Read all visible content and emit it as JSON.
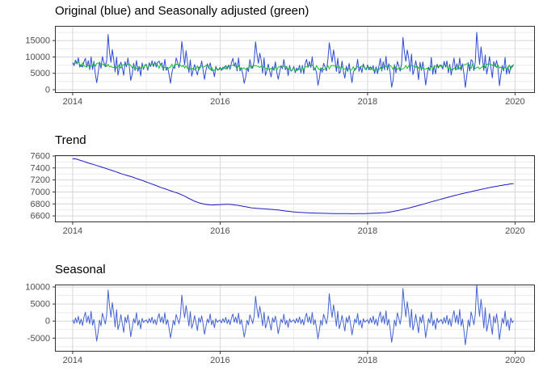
{
  "figure": {
    "background": "#ffffff",
    "grid_major_color": "#d6d6d6",
    "grid_minor_color": "#ececec",
    "panel_border_color": "#333333",
    "tick_color": "#333333",
    "axis_text_color": "#4d4d4d"
  },
  "chart_data": [
    {
      "type": "line",
      "title": "Original (blue) and Seasonally adjusted (green)",
      "x_ticks": [
        2014,
        2016,
        2018,
        2020
      ],
      "x_minor_ticks": [
        2015,
        2017,
        2019
      ],
      "xlim": [
        2013.76,
        2020.27
      ],
      "y_ticks": [
        0,
        5000,
        10000,
        15000
      ],
      "y_minor_ticks": [
        2500,
        7500,
        12500,
        17500
      ],
      "ylim": [
        -1000,
        19500
      ],
      "grid": true,
      "legend": "none (colors named in title)",
      "series": [
        {
          "name": "Original",
          "color": "#2e4bd4",
          "compose": "trend+seasonal+noise"
        },
        {
          "name": "Seasonally adjusted",
          "color": "#12bd2b",
          "compose": "trend+noise"
        }
      ]
    },
    {
      "type": "line",
      "title": "Trend",
      "x_ticks": [
        2014,
        2016,
        2018,
        2020
      ],
      "x_minor_ticks": [
        2015,
        2017,
        2019
      ],
      "xlim": [
        2013.76,
        2020.27
      ],
      "y_ticks": [
        6600,
        6800,
        7000,
        7200,
        7400,
        7600
      ],
      "y_minor_ticks": [
        6500,
        6700,
        6900,
        7100,
        7300,
        7500
      ],
      "ylim": [
        6494,
        7613
      ],
      "grid": true,
      "legend": "none",
      "series": [
        {
          "name": "Trend",
          "color": "#1a1ac9",
          "compose": "trend"
        }
      ]
    },
    {
      "type": "line",
      "title": "Seasonal",
      "x_ticks": [
        2014,
        2016,
        2018,
        2020
      ],
      "x_minor_ticks": [
        2015,
        2017,
        2019
      ],
      "xlim": [
        2013.76,
        2020.27
      ],
      "y_ticks": [
        -5000,
        0,
        5000,
        10000
      ],
      "y_minor_ticks": [
        -7500,
        -2500,
        2500,
        7500
      ],
      "ylim": [
        -8950,
        10714
      ],
      "grid": true,
      "legend": "none",
      "series": [
        {
          "name": "Seasonal",
          "color": "#4463d2",
          "compose": "seasonal"
        }
      ]
    }
  ],
  "decomposition": {
    "start_year": 2014,
    "points_per_year": 52,
    "n_points": 312,
    "trend_x": [
      2014.04,
      2014.12,
      2014.19,
      2014.27,
      2014.35,
      2014.42,
      2014.5,
      2014.58,
      2014.65,
      2014.73,
      2014.81,
      2014.88,
      2014.96,
      2015.04,
      2015.12,
      2015.19,
      2015.27,
      2015.35,
      2015.42,
      2015.5,
      2015.58,
      2015.65,
      2015.73,
      2015.81,
      2015.88,
      2015.96,
      2016.04,
      2016.12,
      2016.19,
      2016.27,
      2016.35,
      2016.42,
      2016.5,
      2016.58,
      2016.65,
      2016.73,
      2016.81,
      2016.88,
      2016.96,
      2017.04,
      2017.19,
      2017.35,
      2017.5,
      2017.65,
      2017.81,
      2017.96,
      2018.12,
      2018.27,
      2018.42,
      2018.58,
      2018.73,
      2018.88,
      2019.04,
      2019.19,
      2019.35,
      2019.5,
      2019.65,
      2019.81,
      2019.96
    ],
    "trend_y": [
      7552,
      7522,
      7492,
      7462,
      7432,
      7405,
      7372,
      7340,
      7308,
      7278,
      7250,
      7218,
      7185,
      7148,
      7112,
      7078,
      7045,
      7010,
      6982,
      6942,
      6890,
      6848,
      6812,
      6792,
      6782,
      6786,
      6792,
      6794,
      6786,
      6770,
      6752,
      6736,
      6726,
      6720,
      6714,
      6706,
      6696,
      6684,
      6672,
      6662,
      6652,
      6645,
      6641,
      6639,
      6637,
      6640,
      6646,
      6658,
      6692,
      6738,
      6788,
      6840,
      6894,
      6944,
      6990,
      7032,
      7072,
      7108,
      7138
    ],
    "seasonal_template": [
      400,
      -700,
      900,
      -500,
      1400,
      -900,
      600,
      -1300,
      1100,
      2600,
      -400,
      1500,
      -800,
      2900,
      -1200,
      500,
      -2400,
      -5900,
      -3100,
      300,
      -1400,
      2300,
      800,
      -900,
      1700,
      9100,
      4600,
      1200,
      5400,
      2300,
      -1700,
      3300,
      -2500,
      -800,
      1900,
      -700,
      -3300,
      1200,
      -500,
      1800,
      -900,
      -4600,
      -2000,
      700,
      -600,
      2500,
      -1300,
      300,
      -2300,
      800,
      -400,
      100
    ],
    "seasonal_year_scale": [
      1.0,
      0.84,
      0.8,
      0.88,
      1.05,
      1.18
    ],
    "noise_template": [
      300,
      -500,
      700,
      -200,
      400,
      -800,
      600,
      -100,
      500,
      -600,
      200,
      -400,
      800,
      -300,
      100,
      -700,
      500,
      200,
      -500,
      700,
      -300,
      400,
      -600,
      300,
      -100,
      600,
      -400,
      200,
      -800,
      500,
      -200,
      700,
      -500,
      100,
      -300,
      800,
      -600,
      400,
      -200,
      600,
      -700,
      300,
      -100,
      500,
      -400,
      200,
      -600,
      700,
      -300,
      400,
      -800,
      100
    ],
    "noise_year_scale": [
      1.0,
      1.1,
      0.9,
      1.05,
      0.95,
      1.15
    ]
  }
}
